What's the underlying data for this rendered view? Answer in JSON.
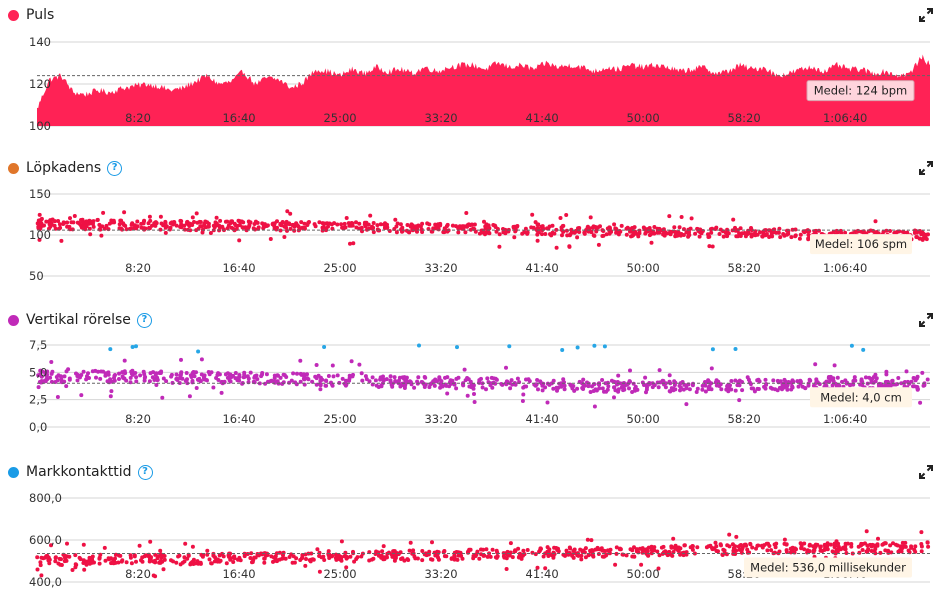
{
  "colors": {
    "pulse": "#ff2255",
    "cadence_dot": "#e0762a",
    "cadence_points": "#ee1144",
    "vertical_dot": "#c02ab8",
    "vertical_points": "#c02ab8",
    "vertical_high": "#27a6e6",
    "gct_dot": "#1a9be6",
    "gct_points": "#ee1144",
    "grid": "#d6d6d6",
    "avg_line": "#666666"
  },
  "x_ticks": [
    "8:20",
    "16:40",
    "25:00",
    "33:20",
    "41:40",
    "50:00",
    "58:20",
    "1:06:40"
  ],
  "icons": {
    "help": "?",
    "expand": "expand-icon"
  },
  "chart_data": [
    {
      "type": "area",
      "title": "Puls",
      "unit": "bpm",
      "x_unit": "seconds",
      "x_range": [
        0,
        4420
      ],
      "y_range": [
        100,
        140
      ],
      "y_ticks": [
        "140",
        "120",
        "100"
      ],
      "average": 124,
      "average_label": "Medel: 124 bpm",
      "series": [
        {
          "x": [
            0,
            60,
            120,
            180,
            240,
            300,
            360,
            420,
            480,
            540,
            600,
            660,
            720,
            780,
            840,
            900,
            960,
            1020,
            1080,
            1140,
            1200,
            1260,
            1320,
            1380,
            1440,
            1500,
            1560,
            1620,
            1680,
            1740,
            1800,
            1860,
            1920,
            1980,
            2040,
            2100,
            2160,
            2220,
            2280,
            2340,
            2400,
            2460,
            2520,
            2580,
            2640,
            2700,
            2760,
            2820,
            2880,
            2940,
            3000,
            3060,
            3120,
            3180,
            3240,
            3300,
            3360,
            3420,
            3480,
            3540,
            3600,
            3660,
            3720,
            3780,
            3840,
            3900,
            3960,
            4020,
            4080,
            4140,
            4200,
            4260,
            4320,
            4380,
            4420
          ],
          "y": [
            108,
            122,
            124,
            116,
            115,
            117,
            116,
            118,
            119,
            120,
            119,
            117,
            118,
            121,
            124,
            120,
            121,
            126,
            120,
            123,
            122,
            118,
            121,
            127,
            126,
            124,
            127,
            125,
            128,
            126,
            127,
            125,
            128,
            126,
            128,
            129,
            129,
            127,
            130,
            128,
            129,
            127,
            130,
            128,
            129,
            128,
            126,
            128,
            127,
            129,
            128,
            129,
            128,
            126,
            127,
            128,
            125,
            126,
            129,
            127,
            128,
            124,
            125,
            127,
            128,
            126,
            129,
            127,
            127,
            125,
            126,
            124,
            125,
            133,
            129
          ]
        }
      ]
    },
    {
      "type": "scatter",
      "title": "Löpkadens",
      "unit": "spm",
      "x_range": [
        0,
        4420
      ],
      "y_range": [
        50,
        150
      ],
      "y_ticks": [
        "150",
        "100",
        "50"
      ],
      "average": 106,
      "average_label": "Medel: 106 spm",
      "trend": {
        "x": [
          0,
          600,
          1200,
          1800,
          2400,
          3000,
          3600,
          3900,
          4200,
          4420
        ],
        "y": [
          113,
          112,
          111,
          109,
          106,
          104,
          103,
          99,
          100,
          100
        ]
      }
    },
    {
      "type": "scatter",
      "title": "Vertikal rörelse",
      "unit": "cm",
      "x_range": [
        0,
        4420
      ],
      "y_range": [
        0,
        7.5
      ],
      "y_ticks": [
        "7,5",
        "5,0",
        "2,5",
        "0,0"
      ],
      "average": 4.0,
      "average_label": "Medel: 4,0 cm",
      "trend": {
        "x": [
          0,
          600,
          1200,
          1800,
          2400,
          3000,
          3600,
          4000,
          4420
        ],
        "y": [
          4.6,
          4.6,
          4.4,
          4.1,
          3.9,
          3.7,
          3.8,
          4.1,
          3.9
        ]
      }
    },
    {
      "type": "scatter",
      "title": "Markkontakttid",
      "unit": "millisekunder",
      "x_range": [
        0,
        4420
      ],
      "y_range": [
        400,
        800
      ],
      "y_ticks": [
        "800,0",
        "600,0",
        "400,0"
      ],
      "average": 536.0,
      "average_label": "Medel: 536,0 millisekunder",
      "trend": {
        "x": [
          0,
          600,
          1200,
          1800,
          2400,
          3000,
          3600,
          4000,
          4420
        ],
        "y": [
          505,
          505,
          515,
          525,
          535,
          545,
          560,
          560,
          565
        ]
      }
    }
  ]
}
